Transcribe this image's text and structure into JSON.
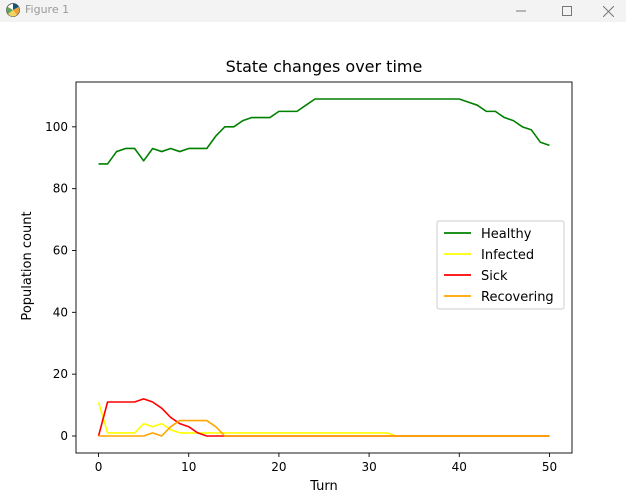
{
  "window": {
    "title": "Figure 1",
    "app_icon": "matplotlib-icon",
    "controls": [
      "minimize-icon",
      "maximize-icon",
      "close-icon"
    ]
  },
  "chart_data": {
    "type": "line",
    "title": "State changes over time",
    "xlabel": "Turn",
    "ylabel": "Population count",
    "xlim": [
      -2.5,
      52.5
    ],
    "ylim": [
      -5.5,
      114.5
    ],
    "xticks": [
      0,
      10,
      20,
      30,
      40,
      50
    ],
    "yticks": [
      0,
      20,
      40,
      60,
      80,
      100
    ],
    "grid": false,
    "legend_position": "center-right",
    "x": [
      0,
      1,
      2,
      3,
      4,
      5,
      6,
      7,
      8,
      9,
      10,
      11,
      12,
      13,
      14,
      15,
      16,
      17,
      18,
      19,
      20,
      21,
      22,
      23,
      24,
      25,
      26,
      27,
      28,
      29,
      30,
      31,
      32,
      33,
      34,
      35,
      36,
      37,
      38,
      39,
      40,
      41,
      42,
      43,
      44,
      45,
      46,
      47,
      48,
      49,
      50
    ],
    "series": [
      {
        "name": "Healthy",
        "color": "#008000",
        "values": [
          88,
          88,
          92,
          93,
          93,
          89,
          93,
          92,
          93,
          92,
          93,
          93,
          93,
          97,
          100,
          100,
          102,
          103,
          103,
          103,
          105,
          105,
          105,
          107,
          109,
          109,
          109,
          109,
          109,
          109,
          109,
          109,
          109,
          109,
          109,
          109,
          109,
          109,
          109,
          109,
          109,
          108,
          107,
          105,
          105,
          103,
          102,
          100,
          99,
          95,
          94
        ]
      },
      {
        "name": "Infected",
        "color": "#ffff00",
        "values": [
          11,
          1,
          1,
          1,
          1,
          4,
          3,
          4,
          2,
          1,
          1,
          1,
          1,
          1,
          1,
          1,
          1,
          1,
          1,
          1,
          1,
          1,
          1,
          1,
          1,
          1,
          1,
          1,
          1,
          1,
          1,
          1,
          1,
          0,
          0,
          0,
          0,
          0,
          0,
          0,
          0,
          0,
          0,
          0,
          0,
          0,
          0,
          0,
          0,
          0,
          0
        ]
      },
      {
        "name": "Sick",
        "color": "#ff0000",
        "values": [
          0,
          11,
          11,
          11,
          11,
          12,
          11,
          9,
          6,
          4,
          3,
          1,
          0,
          0,
          0,
          0,
          0,
          0,
          0,
          0,
          0,
          0,
          0,
          0,
          0,
          0,
          0,
          0,
          0,
          0,
          0,
          0,
          0,
          0,
          0,
          0,
          0,
          0,
          0,
          0,
          0,
          0,
          0,
          0,
          0,
          0,
          0,
          0,
          0,
          0,
          0
        ]
      },
      {
        "name": "Recovering",
        "color": "#ffa500",
        "values": [
          0,
          0,
          0,
          0,
          0,
          0,
          1,
          0,
          3,
          5,
          5,
          5,
          5,
          3,
          0,
          0,
          0,
          0,
          0,
          0,
          0,
          0,
          0,
          0,
          0,
          0,
          0,
          0,
          0,
          0,
          0,
          0,
          0,
          0,
          0,
          0,
          0,
          0,
          0,
          0,
          0,
          0,
          0,
          0,
          0,
          0,
          0,
          0,
          0,
          0,
          0
        ]
      }
    ]
  }
}
